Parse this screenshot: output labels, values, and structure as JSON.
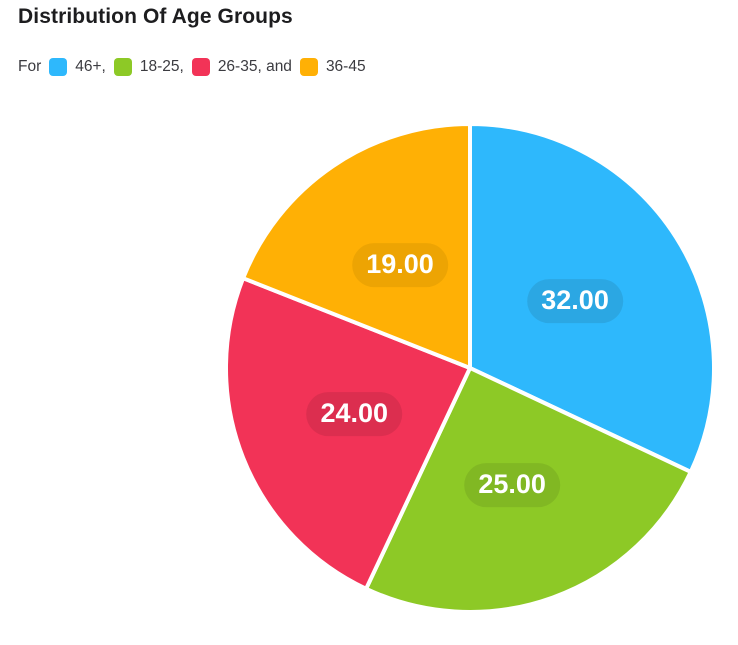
{
  "page": {
    "title": "Distribution Of Age Groups",
    "background": "#ffffff"
  },
  "legend": {
    "prefix": "For",
    "items": [
      {
        "label": "46+",
        "suffix": ",",
        "color": "#2EB8FC"
      },
      {
        "label": "18-25",
        "suffix": ",",
        "color": "#8DC926"
      },
      {
        "label": "26-35",
        "suffix": ", and",
        "color": "#F23357"
      },
      {
        "label": "36-45",
        "suffix": "",
        "color": "#FFB005"
      }
    ]
  },
  "chart_data": {
    "type": "pie",
    "title": "Distribution Of Age Groups",
    "start_angle_deg": 0,
    "direction": "clockwise",
    "total": 100,
    "label_text_color": "#ffffff",
    "slice_border_color": "#ffffff",
    "series": [
      {
        "name": "46+",
        "value": 32,
        "display_label": "32.00",
        "color": "#2EB8FC",
        "label_pill_color": "#2BA7E3"
      },
      {
        "name": "18-25",
        "value": 25,
        "display_label": "25.00",
        "color": "#8DC926",
        "label_pill_color": "#81B823"
      },
      {
        "name": "26-35",
        "value": 24,
        "display_label": "24.00",
        "color": "#F23357",
        "label_pill_color": "#DC2E4F"
      },
      {
        "name": "36-45",
        "value": 19,
        "display_label": "19.00",
        "color": "#FFB005",
        "label_pill_color": "#EDA403"
      }
    ]
  }
}
